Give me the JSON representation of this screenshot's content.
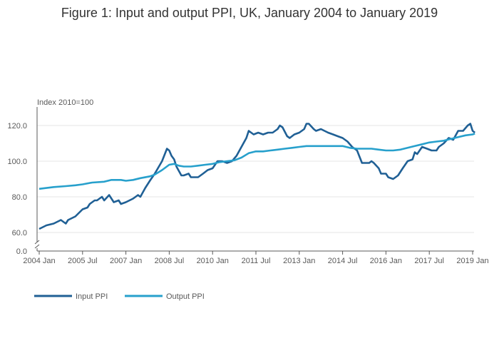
{
  "chart_data": {
    "type": "line",
    "title": "Figure 1: Input and output PPI, UK, January 2004 to January 2019",
    "ylabel": "Index 2010=100",
    "xlabel": "",
    "y_ticks": [
      "0.0",
      "60.0",
      "80.0",
      "100.0",
      "120.0"
    ],
    "y_break": {
      "lower": 0,
      "upper": 60
    },
    "ylim": [
      55,
      130
    ],
    "x_ticks": [
      {
        "label": "2004 Jan",
        "value": 2004.0
      },
      {
        "label": "2005 Jul",
        "value": 2005.5
      },
      {
        "label": "2007 Jan",
        "value": 2007.0
      },
      {
        "label": "2008 Jul",
        "value": 2008.5
      },
      {
        "label": "2010 Jan",
        "value": 2010.0
      },
      {
        "label": "2011 Jul",
        "value": 2011.5
      },
      {
        "label": "2013 Jan",
        "value": 2013.0
      },
      {
        "label": "2014 Jul",
        "value": 2014.5
      },
      {
        "label": "2016 Jan",
        "value": 2016.0
      },
      {
        "label": "2017 Jul",
        "value": 2017.5
      },
      {
        "label": "2019 Jan",
        "value": 2019.0
      }
    ],
    "xlim": [
      2004.0,
      2019.0
    ],
    "grid": "horizontal",
    "legend_position": "bottom-left",
    "series": [
      {
        "name": "Input PPI",
        "color": "#206095",
        "points": [
          [
            2004.0,
            62
          ],
          [
            2004.25,
            64
          ],
          [
            2004.5,
            65
          ],
          [
            2004.75,
            67
          ],
          [
            2004.92,
            65
          ],
          [
            2005.0,
            67
          ],
          [
            2005.25,
            69
          ],
          [
            2005.5,
            73
          ],
          [
            2005.67,
            74
          ],
          [
            2005.75,
            76
          ],
          [
            2005.92,
            78
          ],
          [
            2006.0,
            78
          ],
          [
            2006.17,
            80
          ],
          [
            2006.25,
            78
          ],
          [
            2006.42,
            81
          ],
          [
            2006.58,
            77
          ],
          [
            2006.75,
            78
          ],
          [
            2006.83,
            76
          ],
          [
            2007.0,
            77
          ],
          [
            2007.25,
            79
          ],
          [
            2007.42,
            81
          ],
          [
            2007.5,
            80
          ],
          [
            2007.67,
            85
          ],
          [
            2007.83,
            89
          ],
          [
            2008.0,
            93
          ],
          [
            2008.25,
            100
          ],
          [
            2008.42,
            107
          ],
          [
            2008.5,
            106
          ],
          [
            2008.58,
            103
          ],
          [
            2008.67,
            101
          ],
          [
            2008.75,
            97
          ],
          [
            2008.92,
            92
          ],
          [
            2009.0,
            92
          ],
          [
            2009.17,
            93
          ],
          [
            2009.25,
            91
          ],
          [
            2009.5,
            91
          ],
          [
            2009.67,
            93
          ],
          [
            2009.83,
            95
          ],
          [
            2010.0,
            96
          ],
          [
            2010.17,
            100
          ],
          [
            2010.33,
            100
          ],
          [
            2010.5,
            99
          ],
          [
            2010.67,
            100
          ],
          [
            2010.83,
            103
          ],
          [
            2011.0,
            108
          ],
          [
            2011.17,
            113
          ],
          [
            2011.25,
            117
          ],
          [
            2011.42,
            115
          ],
          [
            2011.58,
            116
          ],
          [
            2011.75,
            115
          ],
          [
            2011.92,
            116
          ],
          [
            2012.08,
            116
          ],
          [
            2012.25,
            118
          ],
          [
            2012.33,
            120
          ],
          [
            2012.42,
            119
          ],
          [
            2012.58,
            114
          ],
          [
            2012.67,
            113
          ],
          [
            2012.83,
            115
          ],
          [
            2013.0,
            116
          ],
          [
            2013.17,
            118
          ],
          [
            2013.25,
            121
          ],
          [
            2013.33,
            121
          ],
          [
            2013.5,
            118
          ],
          [
            2013.58,
            117
          ],
          [
            2013.75,
            118
          ],
          [
            2014.0,
            116
          ],
          [
            2014.17,
            115
          ],
          [
            2014.33,
            114
          ],
          [
            2014.5,
            113
          ],
          [
            2014.67,
            111
          ],
          [
            2014.83,
            108
          ],
          [
            2015.0,
            106
          ],
          [
            2015.17,
            99
          ],
          [
            2015.42,
            99
          ],
          [
            2015.5,
            100
          ],
          [
            2015.58,
            99
          ],
          [
            2015.75,
            96
          ],
          [
            2015.83,
            93
          ],
          [
            2016.0,
            93
          ],
          [
            2016.08,
            91
          ],
          [
            2016.25,
            90
          ],
          [
            2016.42,
            92
          ],
          [
            2016.58,
            96
          ],
          [
            2016.75,
            100
          ],
          [
            2016.92,
            101
          ],
          [
            2017.0,
            105
          ],
          [
            2017.08,
            104
          ],
          [
            2017.25,
            108
          ],
          [
            2017.42,
            107
          ],
          [
            2017.58,
            106
          ],
          [
            2017.75,
            106
          ],
          [
            2017.83,
            108
          ],
          [
            2018.0,
            110
          ],
          [
            2018.17,
            113
          ],
          [
            2018.33,
            112
          ],
          [
            2018.5,
            117
          ],
          [
            2018.67,
            117
          ],
          [
            2018.83,
            120
          ],
          [
            2018.92,
            121
          ],
          [
            2019.0,
            117
          ],
          [
            2019.08,
            116
          ]
        ]
      },
      {
        "name": "Output PPI",
        "color": "#27a0cc",
        "points": [
          [
            2004.0,
            84.5
          ],
          [
            2004.5,
            85.5
          ],
          [
            2004.92,
            86
          ],
          [
            2005.25,
            86.5
          ],
          [
            2005.5,
            87
          ],
          [
            2005.83,
            88
          ],
          [
            2006.25,
            88.5
          ],
          [
            2006.5,
            89.5
          ],
          [
            2006.83,
            89.5
          ],
          [
            2007.0,
            89
          ],
          [
            2007.25,
            89.5
          ],
          [
            2007.5,
            90.5
          ],
          [
            2007.83,
            91.5
          ],
          [
            2008.0,
            92.5
          ],
          [
            2008.25,
            95
          ],
          [
            2008.5,
            98
          ],
          [
            2008.67,
            98.5
          ],
          [
            2008.83,
            97.5
          ],
          [
            2009.0,
            97
          ],
          [
            2009.25,
            97
          ],
          [
            2009.5,
            97.5
          ],
          [
            2009.75,
            98
          ],
          [
            2010.0,
            98.5
          ],
          [
            2010.25,
            99.5
          ],
          [
            2010.5,
            100
          ],
          [
            2010.75,
            100.5
          ],
          [
            2011.0,
            102
          ],
          [
            2011.25,
            104.5
          ],
          [
            2011.5,
            105.5
          ],
          [
            2011.75,
            105.5
          ],
          [
            2012.0,
            106
          ],
          [
            2012.25,
            106.5
          ],
          [
            2012.5,
            107
          ],
          [
            2012.75,
            107.5
          ],
          [
            2013.0,
            108
          ],
          [
            2013.25,
            108.5
          ],
          [
            2013.5,
            108.5
          ],
          [
            2013.75,
            108.5
          ],
          [
            2014.0,
            108.5
          ],
          [
            2014.25,
            108.5
          ],
          [
            2014.5,
            108.5
          ],
          [
            2014.75,
            107.5
          ],
          [
            2015.0,
            107
          ],
          [
            2015.25,
            107
          ],
          [
            2015.5,
            107
          ],
          [
            2015.75,
            106.5
          ],
          [
            2016.0,
            106
          ],
          [
            2016.25,
            106
          ],
          [
            2016.5,
            106.5
          ],
          [
            2016.75,
            107.5
          ],
          [
            2017.0,
            108.5
          ],
          [
            2017.25,
            109.5
          ],
          [
            2017.5,
            110.5
          ],
          [
            2017.75,
            111
          ],
          [
            2018.0,
            111.5
          ],
          [
            2018.25,
            112.5
          ],
          [
            2018.5,
            113.5
          ],
          [
            2018.75,
            114.5
          ],
          [
            2019.0,
            115
          ],
          [
            2019.08,
            115.5
          ]
        ]
      }
    ]
  }
}
